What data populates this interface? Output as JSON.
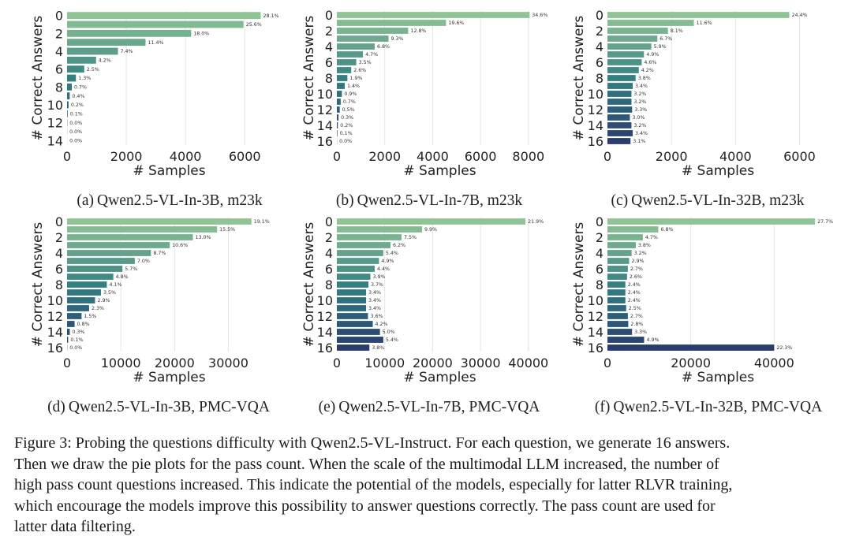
{
  "chart_data": [
    {
      "type": "bar",
      "orientation": "horizontal",
      "caption_label": "(a)",
      "caption_text": "Qwen2.5-VL-In-3B, m23k",
      "xlabel": "# Samples",
      "ylabel": "# Correct Answers",
      "xlim": [
        0,
        6900
      ],
      "xticks": [
        0,
        2000,
        4000,
        6000
      ],
      "yticks": [
        0,
        2,
        4,
        6,
        8,
        10,
        12,
        14
      ],
      "grid": true,
      "categories": [
        0,
        1,
        2,
        3,
        4,
        5,
        6,
        7,
        8,
        9,
        10,
        11,
        12,
        13,
        14
      ],
      "values": [
        6540,
        5960,
        4190,
        2650,
        1720,
        980,
        580,
        300,
        160,
        90,
        50,
        20,
        8,
        4,
        2
      ],
      "labels": [
        "28.1%",
        "25.6%",
        "18.0%",
        "11.4%",
        "7.4%",
        "4.2%",
        "2.5%",
        "1.3%",
        "0.7%",
        "0.4%",
        "0.2%",
        "0.1%",
        "0.0%",
        "0.0%",
        "0.0%"
      ]
    },
    {
      "type": "bar",
      "orientation": "horizontal",
      "caption_label": "(b)",
      "caption_text": "Qwen2.5-VL-In-7B, m23k",
      "xlabel": "# Samples",
      "ylabel": "# Correct Answers",
      "xlim": [
        0,
        8600
      ],
      "xticks": [
        0,
        2000,
        4000,
        6000,
        8000
      ],
      "yticks": [
        0,
        2,
        4,
        6,
        8,
        10,
        12,
        14,
        16
      ],
      "grid": true,
      "categories": [
        0,
        1,
        2,
        3,
        4,
        5,
        6,
        7,
        8,
        9,
        10,
        11,
        12,
        13,
        14,
        15,
        16
      ],
      "values": [
        8050,
        4560,
        2980,
        2160,
        1580,
        1090,
        810,
        600,
        440,
        330,
        210,
        160,
        120,
        70,
        40,
        20,
        5
      ],
      "labels": [
        "34.6%",
        "19.6%",
        "12.8%",
        "9.3%",
        "6.8%",
        "4.7%",
        "3.5%",
        "2.6%",
        "1.9%",
        "1.4%",
        "0.9%",
        "0.7%",
        "0.5%",
        "0.3%",
        "0.2%",
        "0.1%",
        "0.0%"
      ]
    },
    {
      "type": "bar",
      "orientation": "horizontal",
      "caption_label": "(c)",
      "caption_text": "Qwen2.5-VL-In-32B, m23k",
      "xlabel": "# Samples",
      "ylabel": "# Correct Answers",
      "xlim": [
        0,
        6900
      ],
      "xticks": [
        0,
        2000,
        4000,
        6000
      ],
      "yticks": [
        0,
        2,
        4,
        6,
        8,
        10,
        12,
        14,
        16
      ],
      "grid": true,
      "categories": [
        0,
        1,
        2,
        3,
        4,
        5,
        6,
        7,
        8,
        9,
        10,
        11,
        12,
        13,
        14,
        15,
        16
      ],
      "values": [
        5680,
        2700,
        1890,
        1560,
        1370,
        1140,
        1070,
        980,
        880,
        790,
        750,
        750,
        770,
        700,
        750,
        790,
        720
      ],
      "labels": [
        "24.4%",
        "11.6%",
        "8.1%",
        "6.7%",
        "5.9%",
        "4.9%",
        "4.6%",
        "4.2%",
        "3.8%",
        "3.4%",
        "3.2%",
        "3.2%",
        "3.3%",
        "3.0%",
        "3.2%",
        "3.4%",
        "3.1%"
      ]
    },
    {
      "type": "bar",
      "orientation": "horizontal",
      "caption_label": "(d)",
      "caption_text": "Qwen2.5-VL-In-3B, PMC-VQA",
      "xlabel": "# Samples",
      "ylabel": "# Correct Answers",
      "xlim": [
        0,
        38000
      ],
      "xticks": [
        0,
        10000,
        20000,
        30000
      ],
      "yticks": [
        0,
        2,
        4,
        6,
        8,
        10,
        12,
        14,
        16
      ],
      "grid": true,
      "categories": [
        0,
        1,
        2,
        3,
        4,
        5,
        6,
        7,
        8,
        9,
        10,
        11,
        12,
        13,
        14,
        15,
        16
      ],
      "values": [
        34300,
        27900,
        23400,
        19100,
        15600,
        12600,
        10300,
        8600,
        7400,
        6300,
        5200,
        4100,
        2700,
        1400,
        500,
        200,
        30
      ],
      "labels": [
        "19.1%",
        "15.5%",
        "13.0%",
        "10.6%",
        "8.7%",
        "7.0%",
        "5.7%",
        "4.8%",
        "4.1%",
        "3.5%",
        "2.9%",
        "2.3%",
        "1.5%",
        "0.8%",
        "0.3%",
        "0.1%",
        "0.0%"
      ]
    },
    {
      "type": "bar",
      "orientation": "horizontal",
      "caption_label": "(e)",
      "caption_text": "Qwen2.5-VL-In-7B, PMC-VQA",
      "xlabel": "# Samples",
      "ylabel": "# Correct Answers",
      "xlim": [
        0,
        43000
      ],
      "xticks": [
        0,
        10000,
        20000,
        30000,
        40000
      ],
      "yticks": [
        0,
        2,
        4,
        6,
        8,
        10,
        12,
        14,
        16
      ],
      "grid": true,
      "categories": [
        0,
        1,
        2,
        3,
        4,
        5,
        6,
        7,
        8,
        9,
        10,
        11,
        12,
        13,
        14,
        15,
        16
      ],
      "values": [
        39400,
        17800,
        13500,
        11200,
        9700,
        8800,
        7900,
        7000,
        6600,
        6100,
        6100,
        6100,
        6500,
        7500,
        9000,
        9700,
        6800
      ],
      "labels": [
        "21.9%",
        "9.9%",
        "7.5%",
        "6.2%",
        "5.4%",
        "4.9%",
        "4.4%",
        "3.9%",
        "3.7%",
        "3.4%",
        "3.4%",
        "3.4%",
        "3.6%",
        "4.2%",
        "5.0%",
        "5.4%",
        "3.8%"
      ]
    },
    {
      "type": "bar",
      "orientation": "horizontal",
      "caption_label": "(f)",
      "caption_text": "Qwen2.5-VL-In-32B, PMC-VQA",
      "xlabel": "# Samples",
      "ylabel": "# Correct Answers",
      "xlim": [
        0,
        53000
      ],
      "xticks": [
        0,
        20000,
        40000
      ],
      "yticks": [
        0,
        2,
        4,
        6,
        8,
        10,
        12,
        14,
        16
      ],
      "grid": true,
      "categories": [
        0,
        1,
        2,
        3,
        4,
        5,
        6,
        7,
        8,
        9,
        10,
        11,
        12,
        13,
        14,
        15,
        16
      ],
      "values": [
        49800,
        12200,
        8500,
        6800,
        5800,
        5200,
        4900,
        4700,
        4300,
        4300,
        4300,
        4500,
        4900,
        5000,
        5900,
        8800,
        40000
      ],
      "labels": [
        "27.7%",
        "6.8%",
        "4.7%",
        "3.8%",
        "3.2%",
        "2.9%",
        "2.7%",
        "2.6%",
        "2.4%",
        "2.4%",
        "2.4%",
        "2.5%",
        "2.7%",
        "2.8%",
        "3.3%",
        "4.9%",
        "22.3%"
      ]
    }
  ],
  "figure_caption": {
    "lines": [
      "Figure 3: Probing the questions difficulty with Qwen2.5-VL-Instruct. For each question, we generate 16 answers.",
      "Then we draw the pie plots for the pass count. When the scale of the multimodal LLM increased, the number of",
      "high pass count questions increased. This indicate the potential of the models, especially for latter RLVR training,",
      "which encourage the models improve this possibility to answer questions correctly. The pass count are used for",
      "latter data filtering."
    ]
  }
}
